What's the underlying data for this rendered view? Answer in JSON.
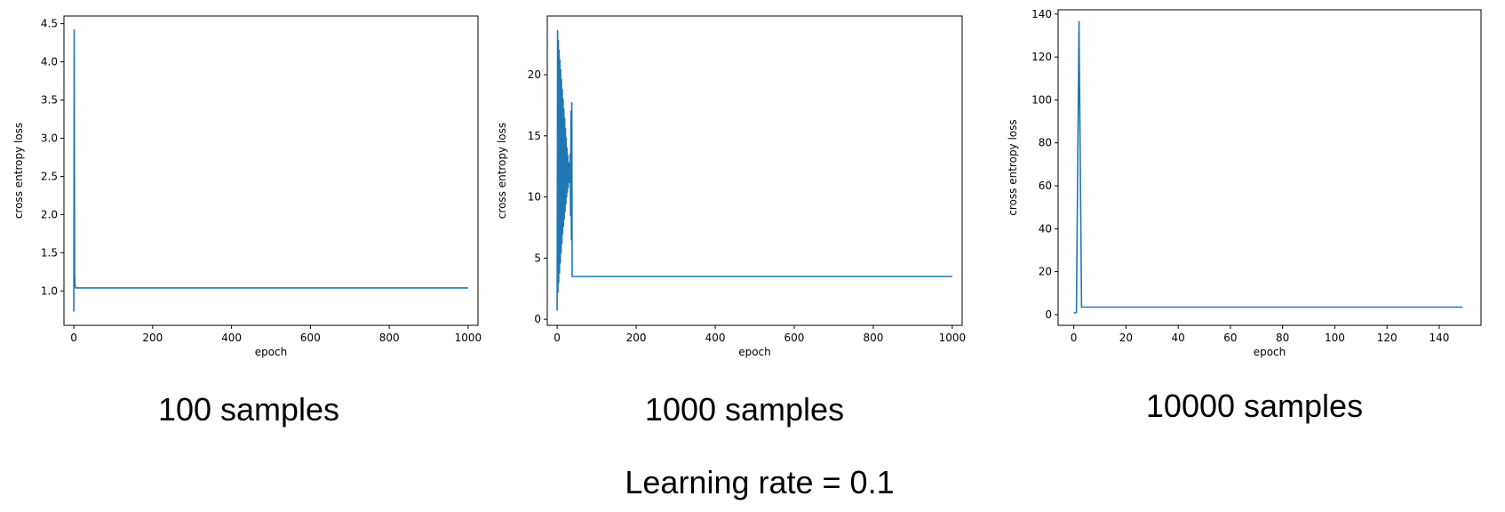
{
  "chart_data": [
    {
      "type": "line",
      "xlabel": "epoch",
      "ylabel": "cross entropy loss",
      "xlim": [
        -25,
        1025
      ],
      "ylim": [
        0.55,
        4.6
      ],
      "xticks": [
        "0",
        "200",
        "400",
        "600",
        "800",
        "1000"
      ],
      "yticks": [
        "1.0",
        "1.5",
        "2.0",
        "2.5",
        "3.0",
        "3.5",
        "4.0",
        "4.5"
      ],
      "grid": false,
      "color": "#1f77b4",
      "series": [
        {
          "x": [
            0,
            1,
            2,
            3,
            4,
            5,
            6,
            8,
            10,
            20,
            50,
            100,
            200,
            400,
            600,
            800,
            1000
          ],
          "values": [
            0.73,
            4.42,
            1.25,
            1.08,
            1.05,
            1.04,
            1.04,
            1.04,
            1.04,
            1.04,
            1.04,
            1.04,
            1.04,
            1.04,
            1.04,
            1.04,
            1.04
          ]
        }
      ],
      "caption": "100 samples"
    },
    {
      "type": "line",
      "xlabel": "epoch",
      "ylabel": "cross entropy loss",
      "xlim": [
        -25,
        1025
      ],
      "ylim": [
        -0.5,
        24.8
      ],
      "xticks": [
        "0",
        "200",
        "400",
        "600",
        "800",
        "1000"
      ],
      "yticks": [
        "0",
        "5",
        "10",
        "15",
        "20"
      ],
      "grid": false,
      "color": "#1f77b4",
      "series": [
        {
          "x": [
            0,
            1,
            2,
            3,
            4,
            5,
            6,
            7,
            8,
            9,
            10,
            11,
            12,
            13,
            14,
            15,
            16,
            17,
            18,
            19,
            20,
            21,
            22,
            23,
            24,
            25,
            26,
            27,
            28,
            29,
            30,
            31,
            32,
            33,
            34,
            35,
            36,
            37,
            38,
            1000
          ],
          "values": [
            0.7,
            23.6,
            2.2,
            22.8,
            3.0,
            22.0,
            3.8,
            21.2,
            4.6,
            20.4,
            5.4,
            19.6,
            6.2,
            18.8,
            7.0,
            18.0,
            7.6,
            17.2,
            8.2,
            16.4,
            8.8,
            15.6,
            9.4,
            14.8,
            10.0,
            14.0,
            10.4,
            13.4,
            10.8,
            12.8,
            11.2,
            12.4,
            11.6,
            13.5,
            8.5,
            17.0,
            6.5,
            17.7,
            3.5,
            3.5
          ]
        }
      ],
      "caption": "1000 samples"
    },
    {
      "type": "line",
      "xlabel": "epoch",
      "ylabel": "cross entropy loss",
      "xlim": [
        -6,
        156
      ],
      "ylim": [
        -5,
        142
      ],
      "xticks": [
        "0",
        "20",
        "40",
        "60",
        "80",
        "100",
        "120",
        "140"
      ],
      "yticks": [
        "0",
        "20",
        "40",
        "60",
        "80",
        "100",
        "120",
        "140"
      ],
      "grid": false,
      "color": "#1f77b4",
      "series": [
        {
          "x": [
            0,
            1,
            2,
            3,
            4,
            10,
            149
          ],
          "values": [
            0.7,
            1.0,
            136.5,
            3.5,
            3.5,
            3.5,
            3.5
          ]
        }
      ],
      "caption": "10000 samples"
    }
  ],
  "footer": "Learning rate = 0.1"
}
